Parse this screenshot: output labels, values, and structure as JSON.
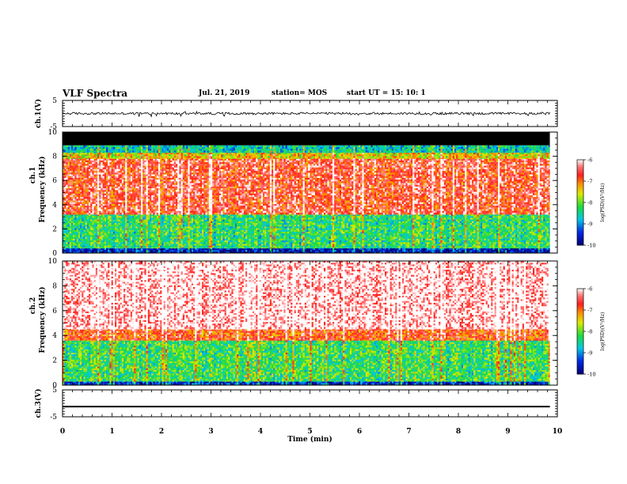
{
  "header": {
    "title": "VLF Spectra",
    "date": "Jul. 21, 2019",
    "station": "station= MOS",
    "start": "start  UT =   15: 10: 1"
  },
  "colors": {
    "spectrum_high": "#ff2020",
    "spectrum_mid_yellow": "#e8e800",
    "spectrum_mid_green": "#20e020",
    "spectrum_mid_cyan": "#00d0e0",
    "spectrum_low": "#0010b0",
    "no_data": "#000000"
  },
  "chart_data": [
    {
      "type": "line",
      "ylabel": "ch.1(V)",
      "ylim": [
        -5,
        5
      ],
      "yticks": [
        "5",
        "-5"
      ],
      "x": [
        0,
        1,
        2,
        3,
        4,
        5,
        6,
        7,
        8,
        9,
        9.85
      ],
      "series": [
        {
          "values": [
            0,
            0,
            0,
            0,
            0,
            0,
            0,
            0,
            0,
            0,
            0
          ]
        }
      ]
    },
    {
      "type": "heatmap",
      "ylabel_top": "ch.1",
      "ylabel": "Frequency (kHz)",
      "ylim": [
        0,
        10
      ],
      "yticks": [
        "0",
        "2",
        "4",
        "6",
        "8",
        "10"
      ],
      "xlim": [
        0,
        10
      ],
      "data_end_x": 9.85,
      "bands_khz": [
        {
          "from": 0,
          "to": 0.4,
          "level": -9.6
        },
        {
          "from": 0.4,
          "to": 3.2,
          "level": -8.3
        },
        {
          "from": 3.2,
          "to": 7.8,
          "level": -6.6
        },
        {
          "from": 7.8,
          "to": 8.3,
          "level": -7.5
        },
        {
          "from": 8.3,
          "to": 8.9,
          "level": -8.6
        },
        {
          "from": 8.9,
          "to": 10,
          "level": "no data"
        }
      ],
      "colorbar": {
        "label": "log(PSD)(V²/Hz)",
        "ticks": [
          "-6",
          "-7",
          "-8",
          "-9",
          "-10"
        ],
        "range": [
          -10,
          -6
        ]
      }
    },
    {
      "type": "heatmap",
      "ylabel_top": "ch.2",
      "ylabel": "Frequency (kHz)",
      "ylim": [
        0,
        10
      ],
      "yticks": [
        "0",
        "2",
        "4",
        "6",
        "8",
        "10"
      ],
      "xlim": [
        0,
        10
      ],
      "data_end_x": 9.85,
      "bands_khz": [
        {
          "from": 0,
          "to": 0.3,
          "level": -9.4
        },
        {
          "from": 0.3,
          "to": 3.6,
          "level": -8.2
        },
        {
          "from": 3.6,
          "to": 4.5,
          "level": -6.8
        },
        {
          "from": 4.5,
          "to": 10,
          "level": -6.0
        }
      ],
      "colorbar": {
        "label": "log(PSD)(V²/Hz)",
        "ticks": [
          "-6",
          "-7",
          "-8",
          "-9",
          "-10"
        ],
        "range": [
          -10,
          -6
        ]
      }
    },
    {
      "type": "line",
      "ylabel": "ch.3(V)",
      "ylim": [
        -5,
        5
      ],
      "yticks": [
        "5",
        "-5"
      ],
      "x": [
        0,
        9.85
      ],
      "series": [
        {
          "values": [
            -1.2,
            -1.2
          ]
        }
      ]
    }
  ],
  "xaxis": {
    "label": "Time (min)",
    "ticks": [
      "0",
      "1",
      "2",
      "3",
      "4",
      "5",
      "6",
      "7",
      "8",
      "9",
      "10"
    ],
    "xlim": [
      0,
      10
    ]
  }
}
